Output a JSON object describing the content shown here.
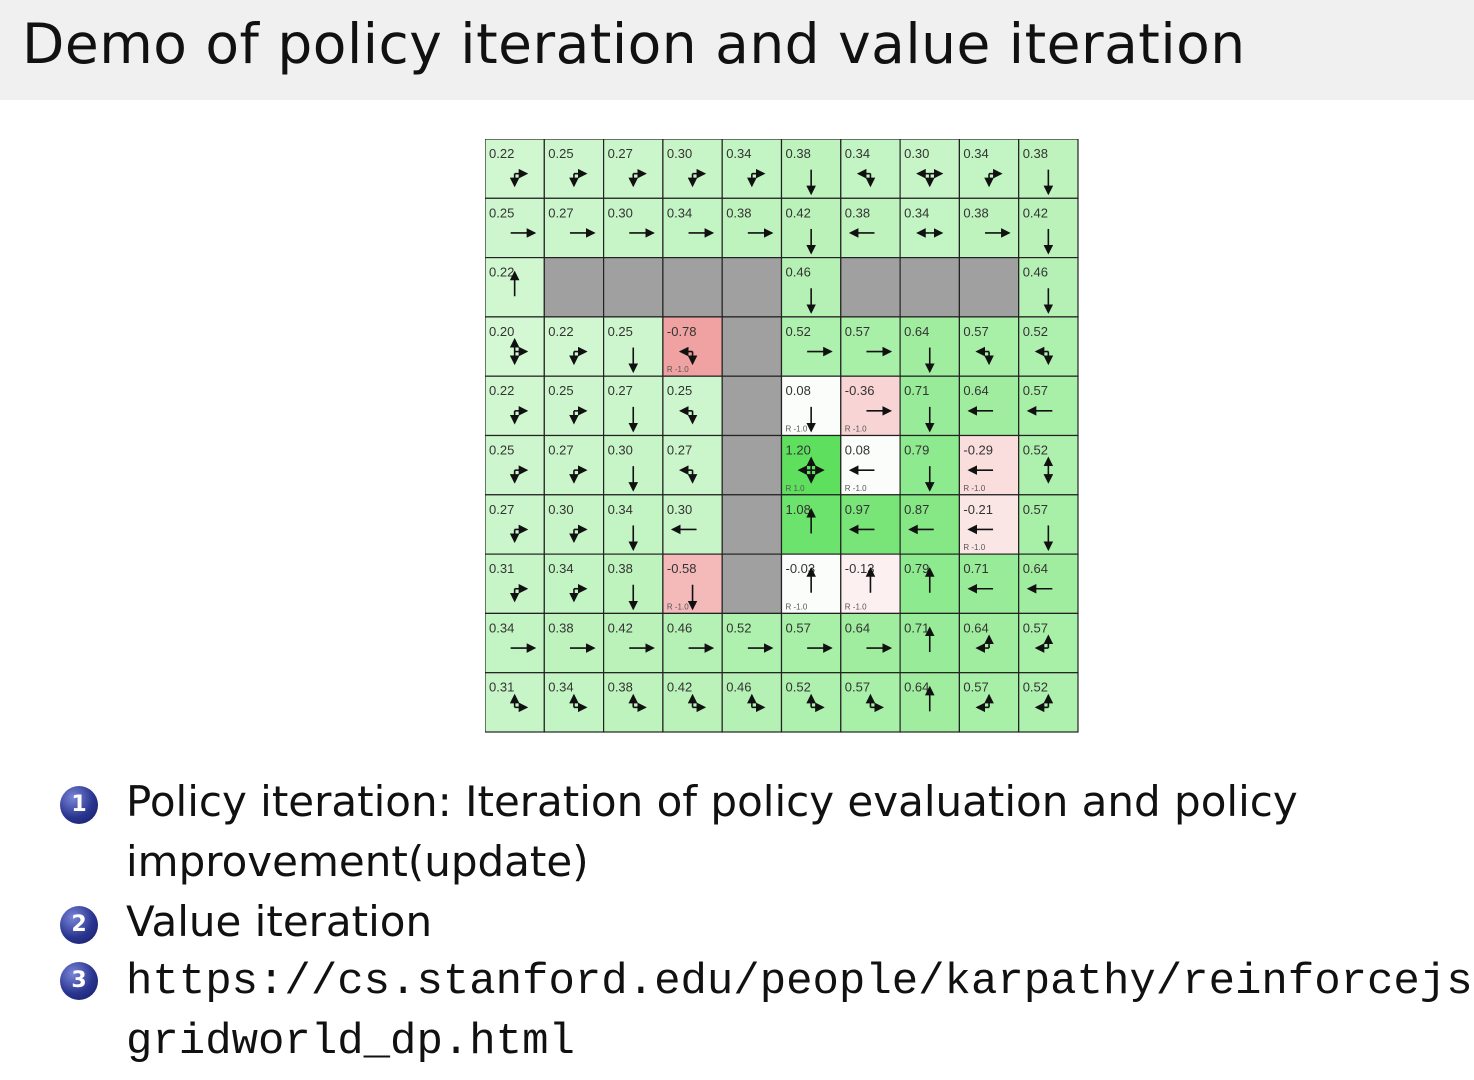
{
  "title": "Demo of policy iteration and value iteration",
  "gridworld": {
    "rows": [
      [
        {
          "v": "0.22",
          "a": "rd"
        },
        {
          "v": "0.25",
          "a": "rd"
        },
        {
          "v": "0.27",
          "a": "rd"
        },
        {
          "v": "0.30",
          "a": "rd"
        },
        {
          "v": "0.34",
          "a": "rd"
        },
        {
          "v": "0.38",
          "a": "d"
        },
        {
          "v": "0.34",
          "a": "ld"
        },
        {
          "v": "0.30",
          "a": "lrd"
        },
        {
          "v": "0.34",
          "a": "rd"
        },
        {
          "v": "0.38",
          "a": "d"
        }
      ],
      [
        {
          "v": "0.25",
          "a": "r"
        },
        {
          "v": "0.27",
          "a": "r"
        },
        {
          "v": "0.30",
          "a": "r"
        },
        {
          "v": "0.34",
          "a": "r"
        },
        {
          "v": "0.38",
          "a": "r"
        },
        {
          "v": "0.42",
          "a": "d"
        },
        {
          "v": "0.38",
          "a": "l"
        },
        {
          "v": "0.34",
          "a": "lr"
        },
        {
          "v": "0.38",
          "a": "r"
        },
        {
          "v": "0.42",
          "a": "d"
        }
      ],
      [
        {
          "v": "0.22",
          "a": "u"
        },
        {
          "wall": true
        },
        {
          "wall": true
        },
        {
          "wall": true
        },
        {
          "wall": true
        },
        {
          "v": "0.46",
          "a": "d"
        },
        {
          "wall": true
        },
        {
          "wall": true
        },
        {
          "wall": true
        },
        {
          "v": "0.46",
          "a": "d"
        }
      ],
      [
        {
          "v": "0.20",
          "a": "urd"
        },
        {
          "v": "0.22",
          "a": "rd"
        },
        {
          "v": "0.25",
          "a": "d"
        },
        {
          "v": "-0.78",
          "a": "ld",
          "r": "R -1.0"
        },
        {
          "wall": true
        },
        {
          "v": "0.52",
          "a": "r"
        },
        {
          "v": "0.57",
          "a": "r"
        },
        {
          "v": "0.64",
          "a": "d"
        },
        {
          "v": "0.57",
          "a": "ld"
        },
        {
          "v": "0.52",
          "a": "ld"
        }
      ],
      [
        {
          "v": "0.22",
          "a": "rd"
        },
        {
          "v": "0.25",
          "a": "rd"
        },
        {
          "v": "0.27",
          "a": "d"
        },
        {
          "v": "0.25",
          "a": "ld"
        },
        {
          "wall": true
        },
        {
          "v": "0.08",
          "a": "d",
          "r": "R -1.0"
        },
        {
          "v": "-0.36",
          "a": "r",
          "r": "R -1.0"
        },
        {
          "v": "0.71",
          "a": "d"
        },
        {
          "v": "0.64",
          "a": "l"
        },
        {
          "v": "0.57",
          "a": "l"
        }
      ],
      [
        {
          "v": "0.25",
          "a": "rd"
        },
        {
          "v": "0.27",
          "a": "rd"
        },
        {
          "v": "0.30",
          "a": "d"
        },
        {
          "v": "0.27",
          "a": "ld"
        },
        {
          "wall": true
        },
        {
          "v": "1.20",
          "a": "udlr",
          "r": "R 1.0"
        },
        {
          "v": "0.08",
          "a": "l",
          "r": "R -1.0"
        },
        {
          "v": "0.79",
          "a": "d"
        },
        {
          "v": "-0.29",
          "a": "l",
          "r": "R -1.0"
        },
        {
          "v": "0.52",
          "a": "ud"
        }
      ],
      [
        {
          "v": "0.27",
          "a": "rd"
        },
        {
          "v": "0.30",
          "a": "rd"
        },
        {
          "v": "0.34",
          "a": "d"
        },
        {
          "v": "0.30",
          "a": "l"
        },
        {
          "wall": true
        },
        {
          "v": "1.08",
          "a": "u"
        },
        {
          "v": "0.97",
          "a": "l"
        },
        {
          "v": "0.87",
          "a": "l"
        },
        {
          "v": "-0.21",
          "a": "l",
          "r": "R -1.0"
        },
        {
          "v": "0.57",
          "a": "d"
        }
      ],
      [
        {
          "v": "0.31",
          "a": "rd"
        },
        {
          "v": "0.34",
          "a": "rd"
        },
        {
          "v": "0.38",
          "a": "d"
        },
        {
          "v": "-0.58",
          "a": "d",
          "r": "R -1.0"
        },
        {
          "wall": true
        },
        {
          "v": "-0.03",
          "a": "u",
          "r": "R -1.0"
        },
        {
          "v": "-0.13",
          "a": "u",
          "r": "R -1.0"
        },
        {
          "v": "0.79",
          "a": "u"
        },
        {
          "v": "0.71",
          "a": "l"
        },
        {
          "v": "0.64",
          "a": "l"
        }
      ],
      [
        {
          "v": "0.34",
          "a": "r"
        },
        {
          "v": "0.38",
          "a": "r"
        },
        {
          "v": "0.42",
          "a": "r"
        },
        {
          "v": "0.46",
          "a": "r"
        },
        {
          "v": "0.52",
          "a": "r"
        },
        {
          "v": "0.57",
          "a": "r"
        },
        {
          "v": "0.64",
          "a": "r"
        },
        {
          "v": "0.71",
          "a": "u"
        },
        {
          "v": "0.64",
          "a": "ul"
        },
        {
          "v": "0.57",
          "a": "ul"
        }
      ],
      [
        {
          "v": "0.31",
          "a": "ur"
        },
        {
          "v": "0.34",
          "a": "ur"
        },
        {
          "v": "0.38",
          "a": "ur"
        },
        {
          "v": "0.42",
          "a": "ur"
        },
        {
          "v": "0.46",
          "a": "ur"
        },
        {
          "v": "0.52",
          "a": "ur"
        },
        {
          "v": "0.57",
          "a": "ur"
        },
        {
          "v": "0.64",
          "a": "u"
        },
        {
          "v": "0.57",
          "a": "ul"
        },
        {
          "v": "0.52",
          "a": "ul"
        }
      ]
    ],
    "colors": {
      "wall": "#a0a0a0",
      "positive": "#5ee05e",
      "negative": "#f0a0a0",
      "grid": "#222222"
    }
  },
  "list": [
    {
      "num": "1",
      "line1": "Policy iteration: Iteration of policy evaluation and policy",
      "line2": "improvement(update)"
    },
    {
      "num": "2",
      "line1": "Value iteration"
    },
    {
      "num": "3",
      "line1": "https://cs.stanford.edu/people/karpathy/reinforcejs/",
      "line2": "gridworld_dp.html"
    }
  ]
}
